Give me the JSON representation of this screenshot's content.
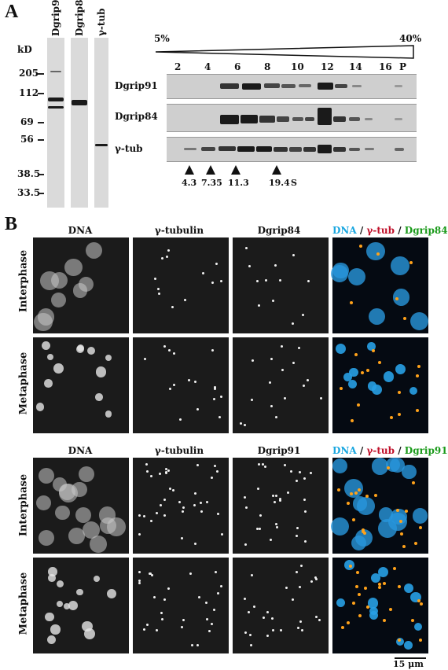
{
  "panel_a": {
    "letter": "A",
    "lane_labels": [
      "Dgrip91",
      "Dgrip84",
      "γ-tub"
    ],
    "kd_label": "kD",
    "kd_markers": [
      "205",
      "112",
      "69",
      "56",
      "38.5",
      "33.5"
    ],
    "gradient_start": "5%",
    "gradient_end": "40%",
    "fraction_labels": [
      "2",
      "4",
      "6",
      "8",
      "10",
      "12",
      "14",
      "16",
      "P"
    ],
    "row_labels": [
      "Dgrip91",
      "Dgrip84",
      "γ-tub"
    ],
    "s_values": [
      "4.3",
      "7.35",
      "11.3",
      "19.4"
    ],
    "s_unit": "S"
  },
  "panel_b": {
    "letter": "B",
    "top": {
      "columns": [
        "DNA",
        "γ-tubulin",
        "Dgrip84"
      ],
      "merge_title": {
        "dna": "DNA",
        "sep1": "/",
        "tub": "γ-tub",
        "sep2": "/",
        "grip": "Dgrip84"
      },
      "rows": [
        "Interphase",
        "Metaphase"
      ]
    },
    "bottom": {
      "columns": [
        "DNA",
        "γ-tubulin",
        "Dgrip91"
      ],
      "merge_title": {
        "dna": "DNA",
        "sep1": "/",
        "tub": "γ-tub",
        "sep2": "/",
        "grip": "Dgrip91"
      },
      "rows": [
        "Interphase",
        "Metaphase"
      ]
    },
    "scale_bar": "15 μm"
  },
  "colors": {
    "dna": "#1aa7e0",
    "tub": "#c0102a",
    "grip": "#1a9a1a"
  }
}
